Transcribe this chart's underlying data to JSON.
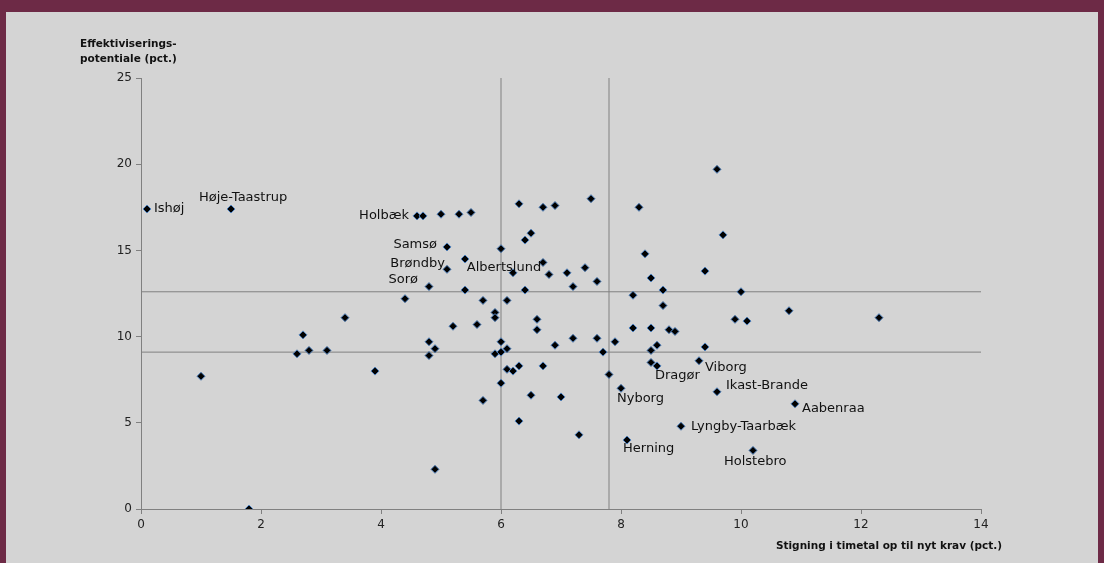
{
  "chart_data": {
    "type": "scatter",
    "xlabel": "Stigning i timetal op til nyt krav (pct.)",
    "ylabel": "Effektiviserings-\npotentiale (pct.)",
    "xlim": [
      0,
      14
    ],
    "xticks": [
      0,
      2,
      4,
      6,
      8,
      10,
      12,
      14
    ],
    "ylim": [
      0,
      25
    ],
    "yticks": [
      0,
      5,
      10,
      15,
      20,
      25
    ],
    "grid": false,
    "marker": "diamond",
    "series": [
      {
        "color": "#000000",
        "x": [
          0.1,
          1.5,
          4.6,
          4.7,
          5.0,
          5.3,
          5.5,
          6.3,
          6.7,
          6.9,
          7.5,
          6.5,
          6.4,
          5.1,
          6.0,
          5.4,
          5.1,
          6.7,
          6.2,
          6.8,
          7.1,
          7.4,
          4.8,
          5.4,
          6.4,
          7.2,
          7.6,
          5.7,
          6.1,
          5.9,
          5.9,
          5.2,
          5.6,
          6.6,
          6.6,
          4.8,
          4.9,
          4.8,
          6.0,
          6.1,
          5.9,
          6.0,
          6.9,
          7.2,
          7.6,
          7.9,
          7.7,
          6.1,
          6.2,
          6.3,
          6.7,
          7.8,
          6.0,
          5.7,
          6.5,
          7.0,
          6.3,
          7.3,
          4.9,
          4.4,
          3.4,
          2.7,
          2.6,
          2.8,
          3.1,
          3.9,
          1.0,
          1.8,
          9.6,
          8.3,
          9.7,
          8.4,
          9.4,
          8.5,
          8.7,
          8.2,
          10.0,
          8.7,
          10.8,
          9.9,
          10.1,
          8.2,
          8.5,
          8.8,
          8.9,
          8.5,
          8.6,
          9.4,
          8.5,
          8.6,
          9.3,
          8.0,
          9.6,
          10.9,
          9.0,
          8.1,
          10.2,
          12.3
        ],
        "values": [
          17.4,
          17.4,
          17.0,
          17.0,
          17.1,
          17.1,
          17.2,
          17.7,
          17.5,
          17.6,
          18.0,
          16.0,
          15.6,
          15.2,
          15.1,
          14.5,
          13.9,
          14.3,
          13.7,
          13.6,
          13.7,
          14.0,
          12.9,
          12.7,
          12.7,
          12.9,
          13.2,
          12.1,
          12.1,
          11.4,
          11.1,
          10.6,
          10.7,
          11.0,
          10.4,
          9.7,
          9.3,
          8.9,
          9.7,
          9.3,
          9.0,
          9.1,
          9.5,
          9.9,
          9.9,
          9.7,
          9.1,
          8.1,
          8.0,
          8.3,
          8.3,
          7.8,
          7.3,
          6.3,
          6.6,
          6.5,
          5.1,
          4.3,
          2.3,
          12.2,
          11.1,
          10.1,
          9.0,
          9.2,
          9.2,
          8.0,
          7.7,
          0.0,
          19.7,
          17.5,
          15.9,
          14.8,
          13.8,
          13.4,
          12.7,
          12.4,
          12.6,
          11.8,
          11.5,
          11.0,
          10.9,
          10.5,
          10.5,
          10.4,
          10.3,
          9.2,
          9.5,
          9.4,
          8.5,
          8.3,
          8.6,
          7.0,
          6.8,
          6.1,
          4.8,
          4.0,
          3.4,
          11.1
        ]
      }
    ],
    "ref_lines": [
      {
        "axis": "x",
        "value": 6.0,
        "color": "#808080"
      },
      {
        "axis": "x",
        "value": 7.8,
        "color": "#808080"
      },
      {
        "axis": "y",
        "value": 12.6,
        "color": "#808080"
      },
      {
        "axis": "y",
        "value": 9.1,
        "color": "#808080"
      }
    ],
    "annotations": [
      {
        "text": "Ishøj",
        "x": 0.1,
        "y": 17.4
      },
      {
        "text": "Høje-Taastrup",
        "x": 1.5,
        "y": 17.4
      },
      {
        "text": "Holbæk",
        "x": 4.6,
        "y": 17.0
      },
      {
        "text": "Samsø",
        "x": 5.1,
        "y": 15.2
      },
      {
        "text": "Brøndby",
        "x": 5.1,
        "y": 13.9
      },
      {
        "text": "Sorø",
        "x": 4.8,
        "y": 12.9
      },
      {
        "text": "Albertslund",
        "x": 6.2,
        "y": 13.7
      },
      {
        "text": "Viborg",
        "x": 9.3,
        "y": 8.6
      },
      {
        "text": "Dragør",
        "x": 8.6,
        "y": 8.3
      },
      {
        "text": "Nyborg",
        "x": 8.0,
        "y": 7.0
      },
      {
        "text": "Ikast-Brande",
        "x": 9.6,
        "y": 6.8
      },
      {
        "text": "Aabenraa",
        "x": 10.9,
        "y": 6.1
      },
      {
        "text": "Lyngby-Taarbæk",
        "x": 9.0,
        "y": 4.8
      },
      {
        "text": "Herning",
        "x": 8.1,
        "y": 4.0
      },
      {
        "text": "Holstebro",
        "x": 10.2,
        "y": 3.4
      }
    ]
  }
}
